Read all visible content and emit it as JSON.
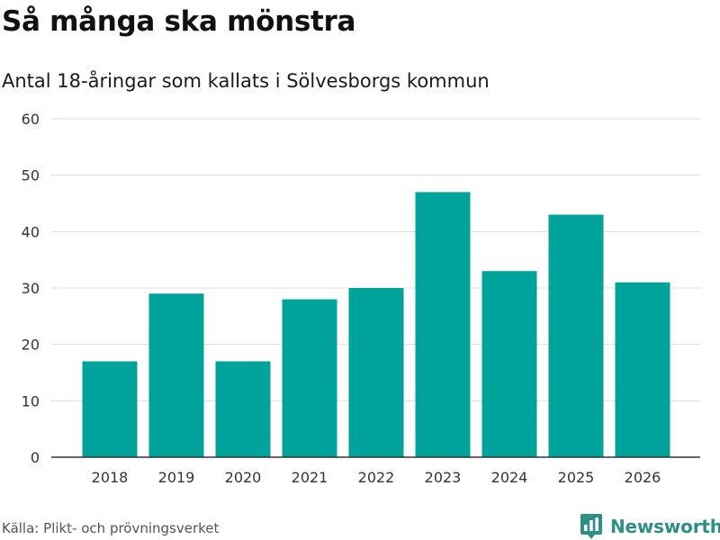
{
  "title": "Så många ska mönstra",
  "subtitle": "Antal 18-åringar som kallats i Sölvesborgs kommun",
  "source": "Källa: Plikt- och prövningsverket",
  "brand": {
    "name": "Newsworthy",
    "icon": "newsworthy-logo-icon"
  },
  "colors": {
    "bar": "#00a39a",
    "brand": "#2d8f85",
    "grid": "#dddddd",
    "axis": "#333333"
  },
  "chart_data": {
    "type": "bar",
    "title": "Så många ska mönstra",
    "subtitle": "Antal 18-åringar som kallats i Sölvesborgs kommun",
    "xlabel": "",
    "ylabel": "",
    "categories": [
      "2018",
      "2019",
      "2020",
      "2021",
      "2022",
      "2023",
      "2024",
      "2025",
      "2026"
    ],
    "values": [
      17,
      29,
      17,
      28,
      30,
      47,
      33,
      43,
      31
    ],
    "ylim": [
      0,
      60
    ],
    "yticks": [
      "0",
      "10",
      "20",
      "30",
      "40",
      "50",
      "60"
    ],
    "grid": true,
    "legend": "none"
  }
}
